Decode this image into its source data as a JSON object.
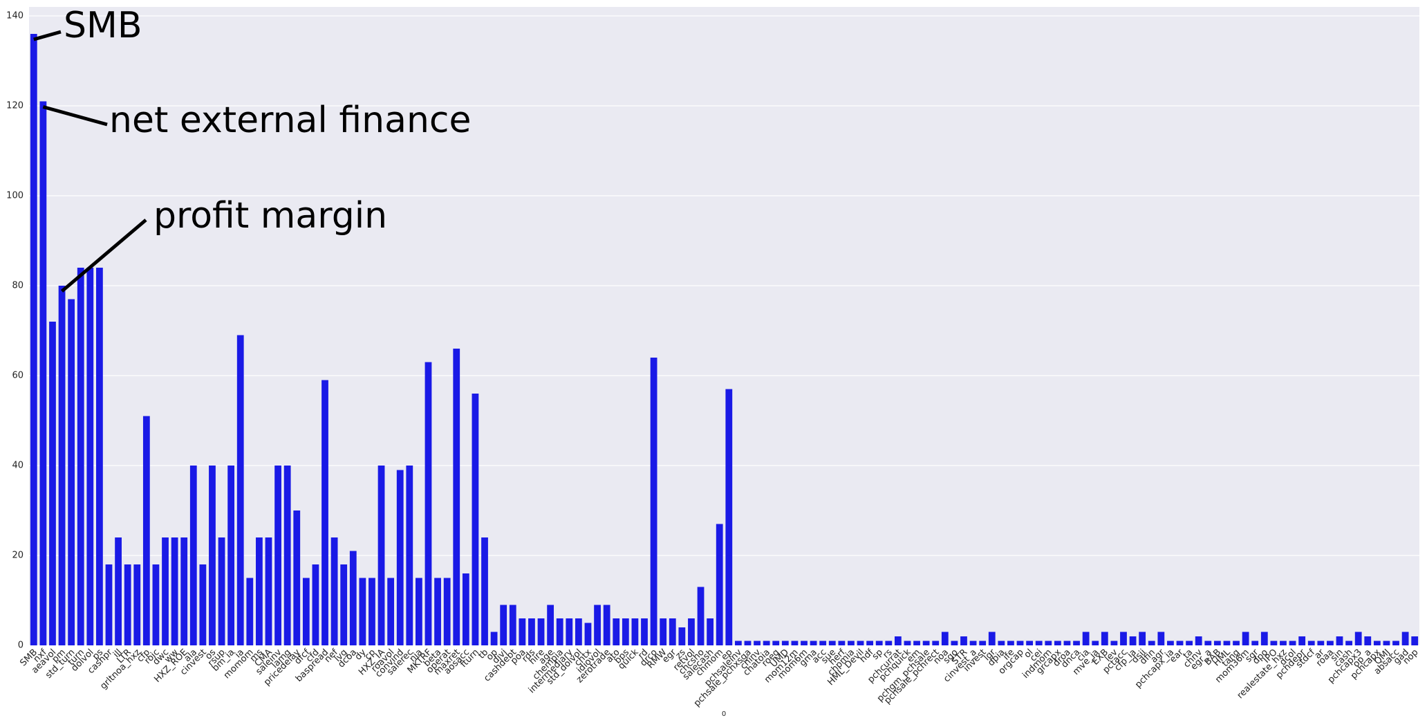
{
  "chart_data": {
    "type": "bar",
    "xlabel": "0",
    "annotations": [
      "SMB",
      "net external finance",
      "profit margin"
    ],
    "categories": [
      "SMB",
      "nxf",
      "aeavol",
      "pm",
      "std_turn",
      "turn",
      "dolvol",
      "ps",
      "cashpr",
      "ill",
      "LTR",
      "grltnoa_hxz",
      "cfp",
      "roic",
      "dwc",
      "ww",
      "HXZ_ROE",
      "ala",
      "cinvest",
      "os",
      "rsup",
      "bm_ia",
      "ia",
      "momom",
      "ms",
      "CMA",
      "saleinv",
      "lamg",
      "pricedelay",
      "dfcf",
      "cfd",
      "baspread",
      "nef",
      "lvg",
      "dcoa",
      "dy",
      "cp",
      "HXZ_IA",
      "roavol",
      "convind",
      "salerec",
      "nia",
      "MKTRF",
      "beta",
      "operat",
      "maxret",
      "aosacc",
      "fturn",
      "tb",
      "op",
      "divi",
      "cashdebt",
      "poa",
      "rds",
      "hire",
      "age",
      "chempia",
      "intermediary",
      "std_dolvol",
      "chtx",
      "idiovol",
      "zerotrade",
      "ato",
      "bps",
      "quick",
      "rd",
      "drco",
      "RMW",
      "egr",
      "zs",
      "retvol",
      "chcsho",
      "salecash",
      "chmom",
      "ep",
      "pchsaleinv",
      "pchsale_pchxsga",
      "chinv",
      "chatoia",
      "roeq",
      "UMD",
      "mom12m",
      "mom6m",
      "gma",
      "acc",
      "sue",
      "herf",
      "chpmia",
      "HML_Devil",
      "hdf",
      "sp",
      "rs",
      "pchcurrat",
      "pchquick",
      "em",
      "pchgm_pchsale",
      "pchsale_pchrect",
      "noa",
      "sgo",
      "STR",
      "cinvest_a",
      "invest",
      "lgr",
      "dpia",
      "ife",
      "orgcap",
      "ol",
      "cei",
      "indmom",
      "grcapx",
      "droa",
      "dnca",
      "cia",
      "mve_ia",
      "EXB",
      "lev",
      "pctacc",
      "cfp_ia",
      "dsii",
      "dfin",
      "agr",
      "pchcapx_ia",
      "ear",
      "ta",
      "chnv",
      "egr_a",
      "BAB",
      "HML",
      "tang",
      "mom36m",
      "sgr",
      "dpo",
      "IPO",
      "realestate_hxz",
      "dcol",
      "pchdepr",
      "stdcf",
      "ar",
      "roaa",
      "sin",
      "cash",
      "pchcapx3",
      "op_a",
      "pchcapx",
      "QMJ",
      "absacc",
      "gad",
      "nop"
    ],
    "values": [
      136,
      121,
      72,
      80,
      77,
      84,
      84,
      84,
      18,
      24,
      18,
      18,
      51,
      18,
      24,
      24,
      24,
      40,
      18,
      40,
      24,
      40,
      69,
      15,
      24,
      24,
      40,
      40,
      30,
      15,
      18,
      59,
      24,
      18,
      21,
      15,
      15,
      40,
      15,
      39,
      40,
      15,
      63,
      15,
      15,
      66,
      16,
      56,
      24,
      3,
      9,
      9,
      6,
      6,
      6,
      9,
      6,
      6,
      6,
      5,
      9,
      9,
      6,
      6,
      6,
      6,
      64,
      6,
      6,
      4,
      6,
      13,
      6,
      27,
      57,
      1,
      1,
      1,
      1,
      1,
      1,
      1,
      1,
      1,
      1,
      1,
      1,
      1,
      1,
      1,
      1,
      1,
      2,
      1,
      1,
      1,
      1,
      3,
      1,
      2,
      1,
      1,
      3,
      1,
      1,
      1,
      1,
      1,
      1,
      1,
      1,
      1,
      3,
      1,
      3,
      1,
      3,
      2,
      3,
      1,
      3,
      1,
      1,
      1,
      2,
      1,
      1,
      1,
      1,
      3,
      1,
      3,
      1,
      1,
      1,
      2,
      1,
      1,
      1,
      2,
      1,
      3,
      2,
      1,
      1,
      1,
      3,
      2
    ],
    "color": "#1a1ae6",
    "ylim": [
      0,
      142
    ],
    "yticks": [
      0,
      20,
      40,
      60,
      80,
      100,
      120,
      140
    ],
    "grid": true
  }
}
